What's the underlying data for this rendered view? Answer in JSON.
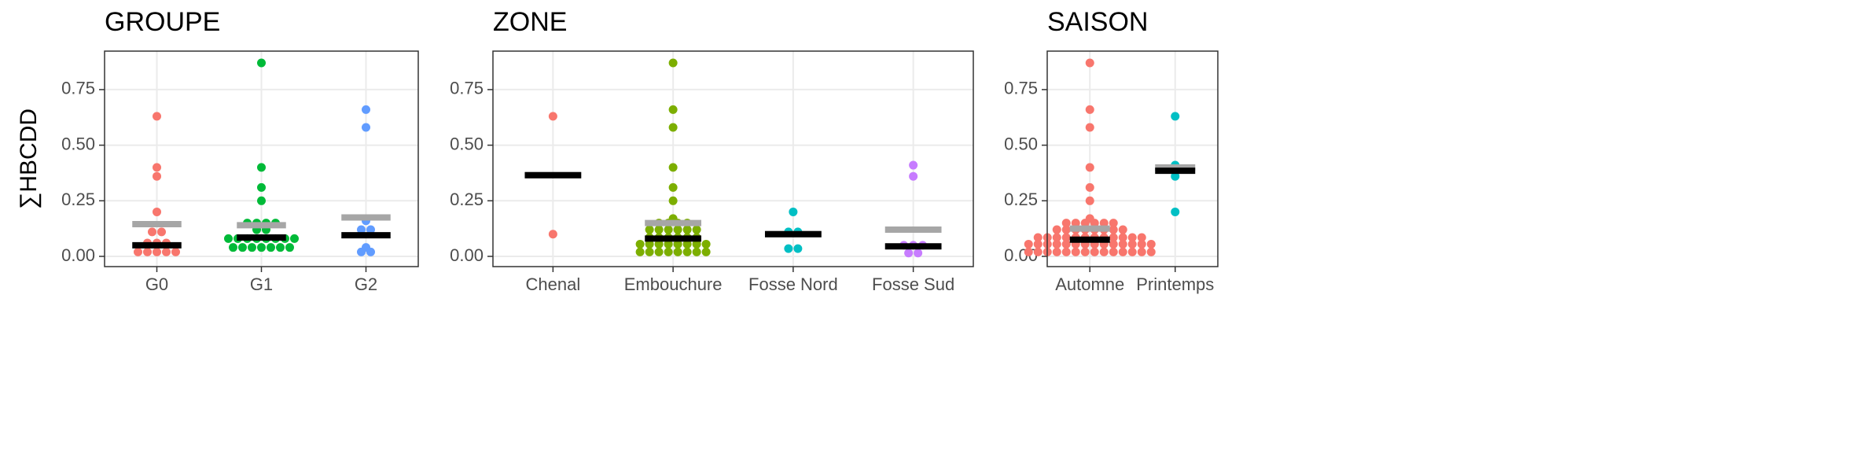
{
  "chart_data": [
    {
      "type": "dotplot",
      "title": "GROUPE",
      "ylabel": "∑HBCDD",
      "categories": [
        "G0",
        "G1",
        "G2"
      ],
      "colors": [
        "#F8766D",
        "#00BA38",
        "#619CFF"
      ],
      "points": [
        [
          0.63,
          0.4,
          0.36,
          0.2,
          0.11,
          0.11,
          0.06,
          0.06,
          0.06,
          0.02,
          0.02,
          0.02,
          0.02,
          0.02
        ],
        [
          0.87,
          0.4,
          0.31,
          0.25,
          0.15,
          0.15,
          0.15,
          0.15,
          0.12,
          0.12,
          0.08,
          0.08,
          0.08,
          0.08,
          0.08,
          0.08,
          0.08,
          0.08,
          0.04,
          0.04,
          0.04,
          0.04,
          0.04,
          0.04,
          0.04
        ],
        [
          0.66,
          0.58,
          0.16,
          0.12,
          0.12,
          0.04,
          0.02,
          0.02
        ]
      ],
      "means": [
        0.145,
        0.14,
        0.175
      ],
      "medians": [
        0.05,
        0.085,
        0.095
      ],
      "ylim": [
        -0.046,
        0.923
      ],
      "yticks": [
        {
          "value": 0,
          "label": "0.00"
        },
        0.25,
        {
          "value": 0.5,
          "label": "0.50"
        },
        0.75
      ],
      "grid": true
    },
    {
      "type": "dotplot",
      "title": "ZONE",
      "categories": [
        "Chenal",
        "Embouchure",
        "Fosse Nord",
        "Fosse Sud"
      ],
      "colors": [
        "#F8766D",
        "#7CAE00",
        "#00BFC4",
        "#C77CFF"
      ],
      "points": [
        [
          0.63,
          0.1
        ],
        [
          0.87,
          0.66,
          0.58,
          0.4,
          0.31,
          0.25,
          0.17,
          0.15,
          0.15,
          0.15,
          0.15,
          0.12,
          0.12,
          0.12,
          0.12,
          0.12,
          0.12,
          0.085,
          0.085,
          0.085,
          0.085,
          0.085,
          0.085,
          0.055,
          0.055,
          0.055,
          0.055,
          0.055,
          0.055,
          0.055,
          0.055,
          0.02,
          0.02,
          0.02,
          0.02,
          0.02,
          0.02,
          0.02,
          0.02
        ],
        [
          0.2,
          0.11,
          0.11,
          0.035,
          0.035
        ],
        [
          0.41,
          0.36,
          0.05,
          0.05,
          0.05,
          0.015,
          0.015
        ]
      ],
      "means": [
        0.365,
        0.15,
        0.1,
        0.12
      ],
      "medians": [
        0.365,
        0.08,
        0.1,
        0.045
      ],
      "ylim": [
        -0.046,
        0.923
      ],
      "yticks": [
        {
          "value": 0,
          "label": "0.00"
        },
        0.25,
        {
          "value": 0.5,
          "label": "0.50"
        },
        0.75
      ],
      "grid": true
    },
    {
      "type": "dotplot",
      "title": "SAISON",
      "categories": [
        "Automne",
        "Printemps"
      ],
      "colors": [
        "#F8766D",
        "#00BFC4"
      ],
      "points": [
        [
          0.87,
          0.66,
          0.58,
          0.4,
          0.31,
          0.25,
          0.17,
          0.15,
          0.15,
          0.15,
          0.15,
          0.15,
          0.15,
          0.12,
          0.12,
          0.12,
          0.12,
          0.12,
          0.12,
          0.12,
          0.12,
          0.085,
          0.085,
          0.085,
          0.085,
          0.085,
          0.085,
          0.085,
          0.085,
          0.085,
          0.085,
          0.085,
          0.085,
          0.055,
          0.055,
          0.055,
          0.055,
          0.055,
          0.055,
          0.055,
          0.055,
          0.055,
          0.055,
          0.055,
          0.055,
          0.055,
          0.055,
          0.02,
          0.02,
          0.02,
          0.02,
          0.02,
          0.02,
          0.02,
          0.02,
          0.02,
          0.02,
          0.02,
          0.02,
          0.02,
          0.02
        ],
        [
          0.63,
          0.41,
          0.36,
          0.2
        ]
      ],
      "means": [
        0.125,
        0.4
      ],
      "medians": [
        0.075,
        0.385
      ],
      "ylim": [
        -0.046,
        0.923
      ],
      "yticks": [
        {
          "value": 0,
          "label": "0.00"
        },
        0.25,
        {
          "value": 0.5,
          "label": "0.50"
        },
        0.75
      ],
      "grid": true
    }
  ]
}
